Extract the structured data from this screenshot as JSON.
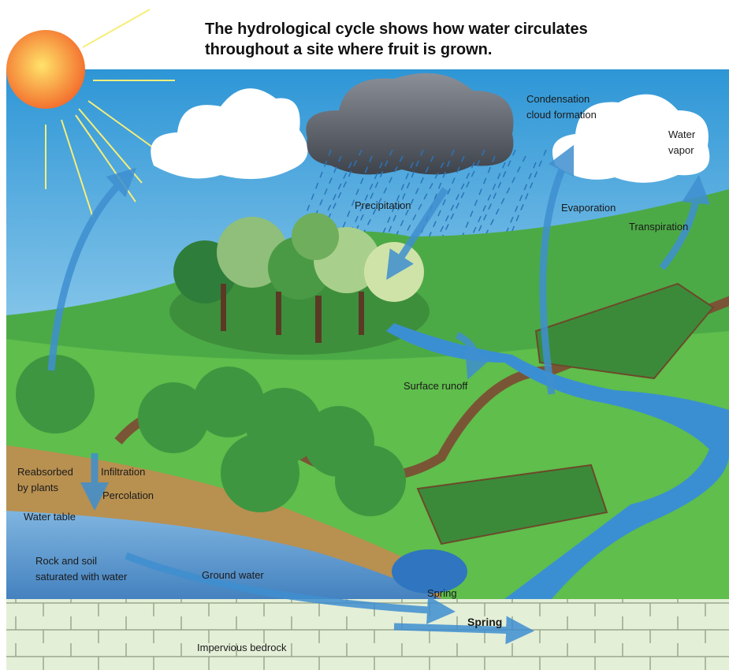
{
  "header": {
    "title": "The hydrological cycle shows how water circulates throughout a site where fruit is grown."
  },
  "labels": [
    {
      "lines": [
        "Condensation",
        "cloud formation"
      ]
    },
    {
      "lines": [
        "Water",
        "vapor"
      ]
    },
    {
      "lines": [
        "Precipitation"
      ]
    },
    {
      "lines": [
        "Evaporation"
      ]
    },
    {
      "lines": [
        "Transpiration"
      ]
    },
    {
      "lines": [
        "Surface runoff"
      ]
    },
    {
      "lines": [
        "Reabsorbed",
        "by plants"
      ]
    },
    {
      "lines": [
        "Infiltration"
      ]
    },
    {
      "lines": [
        "Percolation"
      ]
    },
    {
      "lines": [
        "Water table"
      ]
    },
    {
      "lines": [
        "Rock and soil",
        "saturated with water"
      ]
    },
    {
      "lines": [
        "Ground water"
      ]
    },
    {
      "lines": [
        "Spring"
      ]
    },
    {
      "lines": [
        "Spring"
      ]
    },
    {
      "lines": [
        "Impervious bedrock"
      ]
    }
  ]
}
